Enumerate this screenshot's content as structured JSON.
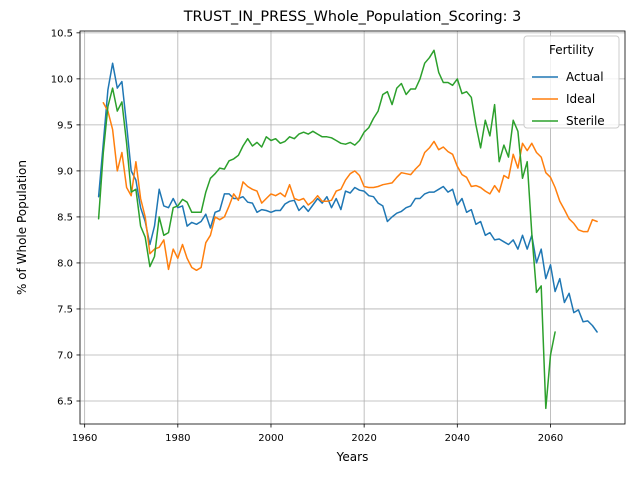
{
  "chart_data": {
    "type": "line",
    "title": "TRUST_IN_PRESS_Whole_Population_Scoring: 3",
    "xlabel": "Years",
    "ylabel": "% of Whole Population",
    "xlim": [
      1959,
      2076
    ],
    "ylim": [
      6.25,
      10.52
    ],
    "x_ticks": [
      1960,
      1980,
      2000,
      2020,
      2040,
      2060
    ],
    "y_ticks": [
      6.5,
      7.0,
      7.5,
      8.0,
      8.5,
      9.0,
      9.5,
      10.0,
      10.5
    ],
    "x_tick_labels": [
      "1960",
      "1980",
      "2000",
      "2020",
      "2040",
      "2060"
    ],
    "y_tick_labels": [
      "6.5",
      "7.0",
      "7.5",
      "8.0",
      "8.5",
      "9.0",
      "9.5",
      "10.0",
      "10.5"
    ],
    "grid": true,
    "legend": {
      "title": "Fertility",
      "position": "top-right"
    },
    "series": [
      {
        "name": "Actual",
        "color": "#1f77b4",
        "points": [
          [
            1963,
            8.72
          ],
          [
            1964,
            9.3
          ],
          [
            1965,
            9.88
          ],
          [
            1966,
            10.17
          ],
          [
            1967,
            9.9
          ],
          [
            1968,
            9.97
          ],
          [
            1969,
            9.5
          ],
          [
            1970,
            9.0
          ],
          [
            1971,
            8.9
          ],
          [
            1972,
            8.6
          ],
          [
            1973,
            8.45
          ],
          [
            1974,
            8.2
          ],
          [
            1975,
            8.4
          ],
          [
            1976,
            8.8
          ],
          [
            1977,
            8.62
          ],
          [
            1978,
            8.6
          ],
          [
            1979,
            8.7
          ],
          [
            1980,
            8.6
          ],
          [
            1981,
            8.62
          ],
          [
            1982,
            8.4
          ],
          [
            1983,
            8.44
          ],
          [
            1984,
            8.42
          ],
          [
            1985,
            8.45
          ],
          [
            1986,
            8.53
          ],
          [
            1987,
            8.38
          ],
          [
            1988,
            8.55
          ],
          [
            1989,
            8.57
          ],
          [
            1990,
            8.75
          ],
          [
            1991,
            8.75
          ],
          [
            1992,
            8.7
          ],
          [
            1993,
            8.7
          ],
          [
            1994,
            8.72
          ],
          [
            1995,
            8.66
          ],
          [
            1996,
            8.65
          ],
          [
            1997,
            8.55
          ],
          [
            1998,
            8.58
          ],
          [
            1999,
            8.57
          ],
          [
            2000,
            8.55
          ],
          [
            2001,
            8.57
          ],
          [
            2002,
            8.57
          ],
          [
            2003,
            8.64
          ],
          [
            2004,
            8.67
          ],
          [
            2005,
            8.68
          ],
          [
            2006,
            8.57
          ],
          [
            2007,
            8.62
          ],
          [
            2008,
            8.56
          ],
          [
            2009,
            8.63
          ],
          [
            2010,
            8.7
          ],
          [
            2011,
            8.65
          ],
          [
            2012,
            8.72
          ],
          [
            2013,
            8.6
          ],
          [
            2014,
            8.7
          ],
          [
            2015,
            8.58
          ],
          [
            2016,
            8.78
          ],
          [
            2017,
            8.76
          ],
          [
            2018,
            8.82
          ],
          [
            2019,
            8.79
          ],
          [
            2020,
            8.78
          ],
          [
            2021,
            8.73
          ],
          [
            2022,
            8.72
          ],
          [
            2023,
            8.65
          ],
          [
            2024,
            8.62
          ],
          [
            2025,
            8.45
          ],
          [
            2026,
            8.5
          ],
          [
            2027,
            8.54
          ],
          [
            2028,
            8.56
          ],
          [
            2029,
            8.6
          ],
          [
            2030,
            8.62
          ],
          [
            2031,
            8.7
          ],
          [
            2032,
            8.7
          ],
          [
            2033,
            8.75
          ],
          [
            2034,
            8.77
          ],
          [
            2035,
            8.77
          ],
          [
            2036,
            8.8
          ],
          [
            2037,
            8.83
          ],
          [
            2038,
            8.77
          ],
          [
            2039,
            8.8
          ],
          [
            2040,
            8.63
          ],
          [
            2041,
            8.7
          ],
          [
            2042,
            8.55
          ],
          [
            2043,
            8.58
          ],
          [
            2044,
            8.42
          ],
          [
            2045,
            8.45
          ],
          [
            2046,
            8.3
          ],
          [
            2047,
            8.33
          ],
          [
            2048,
            8.25
          ],
          [
            2049,
            8.26
          ],
          [
            2050,
            8.23
          ],
          [
            2051,
            8.2
          ],
          [
            2052,
            8.25
          ],
          [
            2053,
            8.15
          ],
          [
            2054,
            8.3
          ],
          [
            2055,
            8.15
          ],
          [
            2056,
            8.3
          ],
          [
            2057,
            8.0
          ],
          [
            2058,
            8.15
          ],
          [
            2059,
            7.83
          ],
          [
            2060,
            7.98
          ],
          [
            2061,
            7.69
          ],
          [
            2062,
            7.83
          ],
          [
            2063,
            7.57
          ],
          [
            2064,
            7.67
          ],
          [
            2065,
            7.46
          ],
          [
            2066,
            7.49
          ],
          [
            2067,
            7.36
          ],
          [
            2068,
            7.37
          ],
          [
            2069,
            7.32
          ],
          [
            2070,
            7.25
          ]
        ]
      },
      {
        "name": "Ideal",
        "color": "#ff7f0e",
        "points": [
          [
            1964,
            9.74
          ],
          [
            1965,
            9.65
          ],
          [
            1966,
            9.45
          ],
          [
            1967,
            9.0
          ],
          [
            1968,
            9.2
          ],
          [
            1969,
            8.82
          ],
          [
            1970,
            8.73
          ],
          [
            1971,
            9.1
          ],
          [
            1972,
            8.7
          ],
          [
            1973,
            8.5
          ],
          [
            1974,
            8.1
          ],
          [
            1975,
            8.15
          ],
          [
            1976,
            8.17
          ],
          [
            1977,
            8.25
          ],
          [
            1978,
            7.93
          ],
          [
            1979,
            8.15
          ],
          [
            1980,
            8.05
          ],
          [
            1981,
            8.2
          ],
          [
            1982,
            8.05
          ],
          [
            1983,
            7.95
          ],
          [
            1984,
            7.92
          ],
          [
            1985,
            7.95
          ],
          [
            1986,
            8.22
          ],
          [
            1987,
            8.3
          ],
          [
            1988,
            8.5
          ],
          [
            1989,
            8.47
          ],
          [
            1990,
            8.5
          ],
          [
            1991,
            8.62
          ],
          [
            1992,
            8.75
          ],
          [
            1993,
            8.68
          ],
          [
            1994,
            8.88
          ],
          [
            1995,
            8.83
          ],
          [
            1996,
            8.8
          ],
          [
            1997,
            8.78
          ],
          [
            1998,
            8.65
          ],
          [
            1999,
            8.7
          ],
          [
            2000,
            8.75
          ],
          [
            2001,
            8.73
          ],
          [
            2002,
            8.76
          ],
          [
            2003,
            8.72
          ],
          [
            2004,
            8.85
          ],
          [
            2005,
            8.7
          ],
          [
            2006,
            8.68
          ],
          [
            2007,
            8.7
          ],
          [
            2008,
            8.63
          ],
          [
            2009,
            8.67
          ],
          [
            2010,
            8.73
          ],
          [
            2011,
            8.67
          ],
          [
            2012,
            8.67
          ],
          [
            2013,
            8.68
          ],
          [
            2014,
            8.78
          ],
          [
            2015,
            8.8
          ],
          [
            2016,
            8.9
          ],
          [
            2017,
            8.97
          ],
          [
            2018,
            9.0
          ],
          [
            2019,
            8.95
          ],
          [
            2020,
            8.83
          ],
          [
            2021,
            8.82
          ],
          [
            2022,
            8.82
          ],
          [
            2023,
            8.83
          ],
          [
            2024,
            8.85
          ],
          [
            2025,
            8.86
          ],
          [
            2026,
            8.87
          ],
          [
            2027,
            8.93
          ],
          [
            2028,
            8.98
          ],
          [
            2029,
            8.97
          ],
          [
            2030,
            8.96
          ],
          [
            2031,
            9.02
          ],
          [
            2032,
            9.07
          ],
          [
            2033,
            9.2
          ],
          [
            2034,
            9.25
          ],
          [
            2035,
            9.32
          ],
          [
            2036,
            9.23
          ],
          [
            2037,
            9.26
          ],
          [
            2038,
            9.21
          ],
          [
            2039,
            9.18
          ],
          [
            2040,
            9.05
          ],
          [
            2041,
            8.96
          ],
          [
            2042,
            8.93
          ],
          [
            2043,
            8.83
          ],
          [
            2044,
            8.84
          ],
          [
            2045,
            8.82
          ],
          [
            2046,
            8.78
          ],
          [
            2047,
            8.75
          ],
          [
            2048,
            8.84
          ],
          [
            2049,
            8.77
          ],
          [
            2050,
            8.95
          ],
          [
            2051,
            8.92
          ],
          [
            2052,
            9.18
          ],
          [
            2053,
            9.03
          ],
          [
            2054,
            9.3
          ],
          [
            2055,
            9.22
          ],
          [
            2056,
            9.3
          ],
          [
            2057,
            9.2
          ],
          [
            2058,
            9.15
          ],
          [
            2059,
            8.98
          ],
          [
            2060,
            8.93
          ],
          [
            2061,
            8.82
          ],
          [
            2062,
            8.67
          ],
          [
            2063,
            8.58
          ],
          [
            2064,
            8.48
          ],
          [
            2065,
            8.43
          ],
          [
            2066,
            8.36
          ],
          [
            2067,
            8.34
          ],
          [
            2068,
            8.34
          ],
          [
            2069,
            8.47
          ],
          [
            2070,
            8.45
          ]
        ]
      },
      {
        "name": "Sterile",
        "color": "#2ca02c",
        "points": [
          [
            1963,
            8.48
          ],
          [
            1964,
            9.2
          ],
          [
            1965,
            9.7
          ],
          [
            1966,
            9.9
          ],
          [
            1967,
            9.65
          ],
          [
            1968,
            9.75
          ],
          [
            1969,
            9.3
          ],
          [
            1970,
            8.77
          ],
          [
            1971,
            8.8
          ],
          [
            1972,
            8.4
          ],
          [
            1973,
            8.28
          ],
          [
            1974,
            7.96
          ],
          [
            1975,
            8.07
          ],
          [
            1976,
            8.5
          ],
          [
            1977,
            8.3
          ],
          [
            1978,
            8.33
          ],
          [
            1979,
            8.6
          ],
          [
            1980,
            8.62
          ],
          [
            1981,
            8.69
          ],
          [
            1982,
            8.66
          ],
          [
            1983,
            8.55
          ],
          [
            1984,
            8.55
          ],
          [
            1985,
            8.55
          ],
          [
            1986,
            8.77
          ],
          [
            1987,
            8.92
          ],
          [
            1988,
            8.97
          ],
          [
            1989,
            9.03
          ],
          [
            1990,
            9.02
          ],
          [
            1991,
            9.11
          ],
          [
            1992,
            9.13
          ],
          [
            1993,
            9.17
          ],
          [
            1994,
            9.27
          ],
          [
            1995,
            9.35
          ],
          [
            1996,
            9.27
          ],
          [
            1997,
            9.31
          ],
          [
            1998,
            9.26
          ],
          [
            1999,
            9.37
          ],
          [
            2000,
            9.33
          ],
          [
            2001,
            9.35
          ],
          [
            2002,
            9.3
          ],
          [
            2003,
            9.32
          ],
          [
            2004,
            9.37
          ],
          [
            2005,
            9.35
          ],
          [
            2006,
            9.4
          ],
          [
            2007,
            9.42
          ],
          [
            2008,
            9.4
          ],
          [
            2009,
            9.43
          ],
          [
            2010,
            9.4
          ],
          [
            2011,
            9.37
          ],
          [
            2012,
            9.37
          ],
          [
            2013,
            9.36
          ],
          [
            2014,
            9.33
          ],
          [
            2015,
            9.3
          ],
          [
            2016,
            9.29
          ],
          [
            2017,
            9.31
          ],
          [
            2018,
            9.28
          ],
          [
            2019,
            9.33
          ],
          [
            2020,
            9.42
          ],
          [
            2021,
            9.47
          ],
          [
            2022,
            9.57
          ],
          [
            2023,
            9.65
          ],
          [
            2024,
            9.83
          ],
          [
            2025,
            9.86
          ],
          [
            2026,
            9.72
          ],
          [
            2027,
            9.9
          ],
          [
            2028,
            9.95
          ],
          [
            2029,
            9.83
          ],
          [
            2030,
            9.89
          ],
          [
            2031,
            9.89
          ],
          [
            2032,
            10.0
          ],
          [
            2033,
            10.17
          ],
          [
            2034,
            10.23
          ],
          [
            2035,
            10.31
          ],
          [
            2036,
            10.07
          ],
          [
            2037,
            9.96
          ],
          [
            2038,
            9.96
          ],
          [
            2039,
            9.93
          ],
          [
            2040,
            10.0
          ],
          [
            2041,
            9.84
          ],
          [
            2042,
            9.86
          ],
          [
            2043,
            9.8
          ],
          [
            2044,
            9.5
          ],
          [
            2045,
            9.25
          ],
          [
            2046,
            9.55
          ],
          [
            2047,
            9.38
          ],
          [
            2048,
            9.72
          ],
          [
            2049,
            9.1
          ],
          [
            2050,
            9.28
          ],
          [
            2051,
            9.15
          ],
          [
            2052,
            9.55
          ],
          [
            2053,
            9.43
          ],
          [
            2054,
            8.92
          ],
          [
            2055,
            9.1
          ],
          [
            2056,
            8.32
          ],
          [
            2057,
            7.68
          ],
          [
            2058,
            7.75
          ],
          [
            2059,
            6.42
          ],
          [
            2060,
            7.0
          ],
          [
            2061,
            7.25
          ]
        ]
      }
    ]
  }
}
